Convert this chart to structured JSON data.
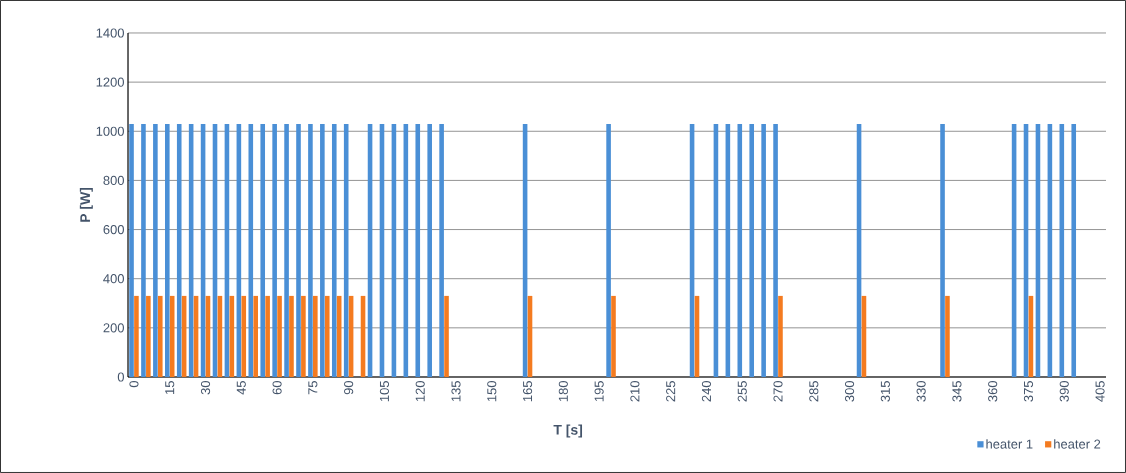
{
  "chart_data": {
    "type": "bar",
    "xlabel": "T [s]",
    "ylabel": "P [W]",
    "categories": [
      "0",
      null,
      null,
      "15",
      null,
      null,
      "30",
      null,
      null,
      "45",
      null,
      null,
      "60",
      null,
      null,
      "75",
      null,
      null,
      "90",
      null,
      null,
      "105",
      null,
      null,
      "120",
      null,
      null,
      "135",
      null,
      null,
      "150",
      null,
      null,
      "165",
      null,
      null,
      "180",
      null,
      null,
      "195",
      null,
      null,
      "210",
      null,
      null,
      "225",
      null,
      null,
      "240",
      null,
      null,
      "255",
      null,
      null,
      "270",
      null,
      null,
      "285",
      null,
      null,
      "300",
      null,
      null,
      "315",
      null,
      null,
      "330",
      null,
      null,
      "345",
      null,
      null,
      "360",
      null,
      null,
      "375",
      null,
      null,
      "390",
      null,
      null,
      "405"
    ],
    "series": [
      {
        "name": "heater 1",
        "color": "#4a8fd6",
        "values": [
          1030,
          1030,
          1030,
          1030,
          1030,
          1030,
          1030,
          1030,
          1030,
          1030,
          1030,
          1030,
          1030,
          1030,
          1030,
          1030,
          1030,
          1030,
          1030,
          0,
          1030,
          1030,
          1030,
          1030,
          1030,
          1030,
          1030,
          0,
          0,
          0,
          0,
          0,
          0,
          1030,
          0,
          0,
          0,
          0,
          0,
          0,
          1030,
          0,
          0,
          0,
          0,
          0,
          0,
          1030,
          0,
          1030,
          1030,
          1030,
          1030,
          1030,
          1030,
          0,
          0,
          0,
          0,
          0,
          0,
          1030,
          0,
          0,
          0,
          0,
          0,
          0,
          1030,
          0,
          0,
          0,
          0,
          0,
          1030,
          1030,
          1030,
          1030,
          1030,
          1030,
          0,
          0
        ]
      },
      {
        "name": "heater 2",
        "color": "#f47b20",
        "values": [
          330,
          330,
          330,
          330,
          330,
          330,
          330,
          330,
          330,
          330,
          330,
          330,
          330,
          330,
          330,
          330,
          330,
          330,
          330,
          330,
          0,
          0,
          0,
          0,
          0,
          0,
          330,
          0,
          0,
          0,
          0,
          0,
          0,
          330,
          0,
          0,
          0,
          0,
          0,
          0,
          330,
          0,
          0,
          0,
          0,
          0,
          0,
          330,
          0,
          0,
          0,
          0,
          0,
          0,
          330,
          0,
          0,
          0,
          0,
          0,
          0,
          330,
          0,
          0,
          0,
          0,
          0,
          0,
          330,
          0,
          0,
          0,
          0,
          0,
          0,
          330,
          0,
          0,
          0,
          0,
          0,
          0
        ]
      }
    ],
    "ylim": [
      0,
      1400
    ],
    "yticks": [
      0,
      200,
      400,
      600,
      800,
      1000,
      1200,
      1400
    ],
    "grid": "y",
    "legend": "bottom right"
  }
}
